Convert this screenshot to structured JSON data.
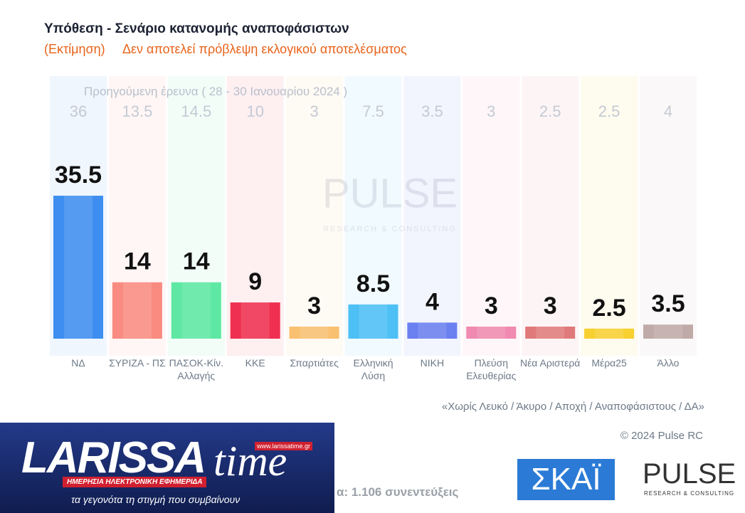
{
  "chart_data": {
    "type": "bar",
    "title": "Υπόθεση - Σενάριο κατανομής αναποφάσιστων",
    "subtitle_label": "(Εκτίμηση)",
    "subtitle": "Δεν αποτελεί πρόβλεψη εκλογικού αποτελέσματος",
    "previous_label": "Προηγούμενη έρευνα ( 28 - 30 Ιανουαρίου 2024 )",
    "categories": [
      "ΝΔ",
      "ΣΥΡΙΖΑ - ΠΣ",
      "ΠΑΣΟΚ-Κίν. Αλλαγής",
      "ΚΚΕ",
      "Σπαρτιάτες",
      "Ελληνική Λύση",
      "ΝΙΚΗ",
      "Πλεύση Ελευθερίας",
      "Νέα Αριστερά",
      "Μέρα25",
      "Άλλο"
    ],
    "series": [
      {
        "name": "current",
        "values": [
          35.5,
          14,
          14,
          9,
          3,
          8.5,
          4,
          3,
          3,
          2.5,
          3.5
        ]
      },
      {
        "name": "previous",
        "values": [
          36,
          13.5,
          14.5,
          10,
          3,
          7.5,
          3.5,
          3,
          2.5,
          2.5,
          4
        ]
      }
    ],
    "colors": [
      "#3d8ef0",
      "#f98b80",
      "#5ee8a3",
      "#f03050",
      "#f8c070",
      "#4dc0f5",
      "#6a80f0",
      "#f08ab0",
      "#e07a7a",
      "#f8d030",
      "#c0aaa8"
    ],
    "note": "«Χωρίς Λευκό / Άκυρο / Αποχή / Αναποφάσιστους / ΔΑ»",
    "copyright": "© 2024 Pulse RC",
    "sample": "α:  1.106 συνεντεύξεις"
  },
  "branding": {
    "watermark": "PULSE",
    "watermark_sub": "RESEARCH & CONSULTING",
    "larissa": "LARISSA",
    "time": "time",
    "url": "www.larissatime.gr",
    "tagline1": "ΗΜΕΡΗΣΙΑ ΗΛΕΚΤΡΟΝΙΚΗ ΕΦΗΜΕΡΙΔΑ",
    "tagline2": "τα γεγονότα τη στιγμή που συμβαίνουν",
    "skai": "ΣΚΑΪ",
    "pulse": "PULSE",
    "pulse_sub": "RESEARCH & CONSULTING"
  }
}
